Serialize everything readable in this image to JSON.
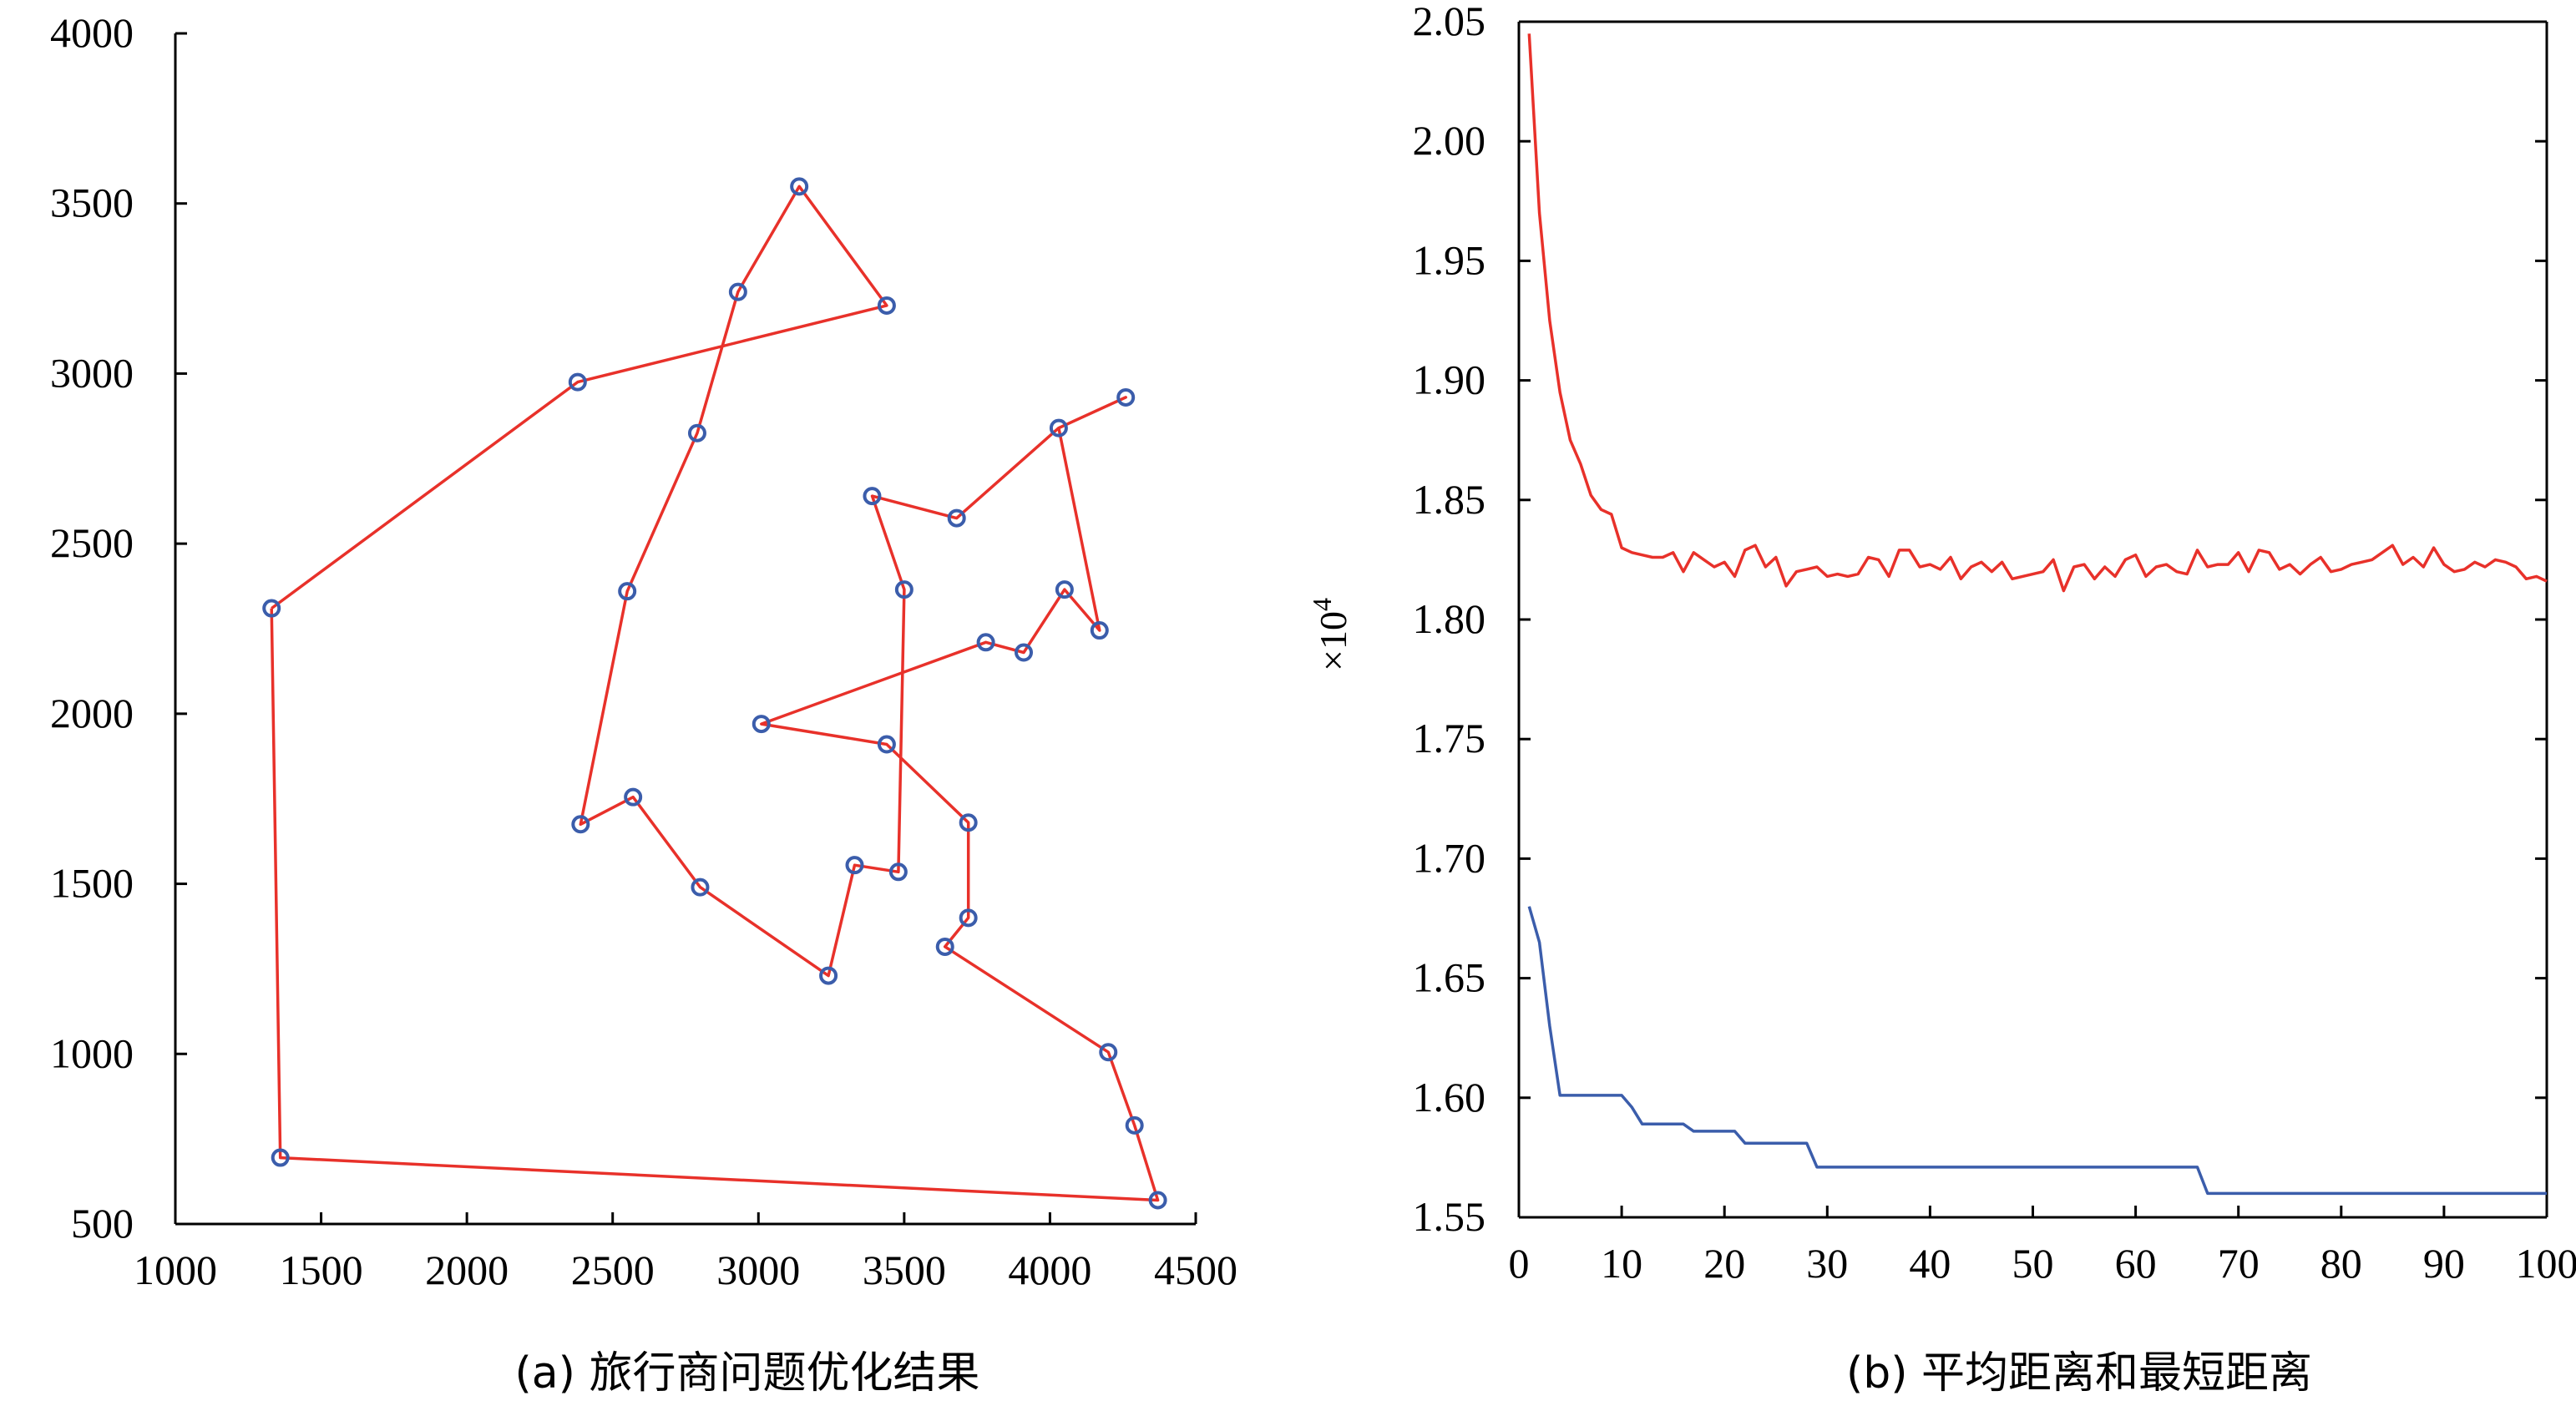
{
  "chart_data": [
    {
      "type": "line",
      "subtype": "route",
      "caption": "(a) 旅行商问题优化结果",
      "xlim": [
        1000,
        4500
      ],
      "ylim": [
        500,
        4000
      ],
      "xticks": [
        "1000",
        "1500",
        "2000",
        "2500",
        "3000",
        "3500",
        "4000",
        "4500"
      ],
      "yticks": [
        "500",
        "1000",
        "1500",
        "2000",
        "2500",
        "3000",
        "3500",
        "4000"
      ],
      "grid": false,
      "line_color": "#e8312a",
      "marker_color": "#3b5dab",
      "route": [
        [
          1330,
          2310
        ],
        [
          2380,
          2975
        ],
        [
          3440,
          3200
        ],
        [
          3140,
          3550
        ],
        [
          2930,
          3240
        ],
        [
          2790,
          2825
        ],
        [
          2550,
          2360
        ],
        [
          2390,
          1675
        ],
        [
          2570,
          1755
        ],
        [
          2800,
          1490
        ],
        [
          3240,
          1230
        ],
        [
          3330,
          1555
        ],
        [
          3480,
          1535
        ],
        [
          3500,
          2365
        ],
        [
          3390,
          2640
        ],
        [
          3680,
          2575
        ],
        [
          4030,
          2840
        ],
        [
          4260,
          2930
        ],
        [
          4030,
          2840
        ],
        [
          4170,
          2245
        ],
        [
          4050,
          2365
        ],
        [
          3910,
          2180
        ],
        [
          3780,
          2210
        ],
        [
          3010,
          1970
        ],
        [
          3440,
          1910
        ],
        [
          3720,
          1680
        ],
        [
          3720,
          1400
        ],
        [
          3640,
          1315
        ],
        [
          4200,
          1005
        ],
        [
          4290,
          790
        ],
        [
          4370,
          570
        ],
        [
          1360,
          695
        ],
        [
          1330,
          2310
        ]
      ]
    },
    {
      "type": "line",
      "caption": "(b) 平均距离和最短距离",
      "xlim": [
        0,
        100
      ],
      "ylim": [
        1.55,
        2.05
      ],
      "multiplier": "×10",
      "multiplier_exp": "4",
      "xticks": [
        "0",
        "10",
        "20",
        "30",
        "40",
        "50",
        "60",
        "70",
        "80",
        "90",
        "100"
      ],
      "yticks": [
        "1.55",
        "1.60",
        "1.65",
        "1.70",
        "1.75",
        "1.80",
        "1.85",
        "1.90",
        "1.95",
        "2.00",
        "2.05"
      ],
      "grid": false,
      "series": [
        {
          "color": "#e8312a",
          "x": [
            1,
            2,
            3,
            4,
            5,
            6,
            7,
            8,
            9,
            10,
            11,
            12,
            13,
            14,
            15,
            16,
            17,
            18,
            19,
            20,
            21,
            22,
            23,
            24,
            25,
            26,
            27,
            28,
            29,
            30,
            31,
            32,
            33,
            34,
            35,
            36,
            37,
            38,
            39,
            40,
            41,
            42,
            43,
            44,
            45,
            46,
            47,
            48,
            49,
            50,
            51,
            52,
            53,
            54,
            55,
            56,
            57,
            58,
            59,
            60,
            61,
            62,
            63,
            64,
            65,
            66,
            67,
            68,
            69,
            70,
            71,
            72,
            73,
            74,
            75,
            76,
            77,
            78,
            79,
            80,
            81,
            82,
            83,
            84,
            85,
            86,
            87,
            88,
            89,
            90,
            91,
            92,
            93,
            94,
            95,
            96,
            97,
            98,
            99,
            100
          ],
          "values": [
            2.045,
            1.97,
            1.925,
            1.895,
            1.875,
            1.865,
            1.852,
            1.846,
            1.844,
            1.83,
            1.828,
            1.827,
            1.826,
            1.826,
            1.828,
            1.82,
            1.828,
            1.825,
            1.822,
            1.824,
            1.818,
            1.829,
            1.831,
            1.822,
            1.826,
            1.814,
            1.82,
            1.821,
            1.822,
            1.818,
            1.819,
            1.818,
            1.819,
            1.826,
            1.825,
            1.818,
            1.829,
            1.829,
            1.822,
            1.823,
            1.821,
            1.826,
            1.817,
            1.822,
            1.824,
            1.82,
            1.824,
            1.817,
            1.818,
            1.819,
            1.82,
            1.825,
            1.812,
            1.822,
            1.823,
            1.817,
            1.822,
            1.818,
            1.825,
            1.827,
            1.818,
            1.822,
            1.823,
            1.82,
            1.819,
            1.829,
            1.822,
            1.823,
            1.823,
            1.828,
            1.82,
            1.829,
            1.828,
            1.821,
            1.823,
            1.819,
            1.823,
            1.826,
            1.82,
            1.821,
            1.823,
            1.824,
            1.825,
            1.828,
            1.831,
            1.823,
            1.826,
            1.822,
            1.83,
            1.823,
            1.82,
            1.821,
            1.824,
            1.822,
            1.825,
            1.824,
            1.822,
            1.817,
            1.818,
            1.816
          ]
        },
        {
          "color": "#3b5dab",
          "x": [
            1,
            2,
            3,
            4,
            5,
            6,
            7,
            8,
            9,
            10,
            11,
            12,
            13,
            14,
            15,
            16,
            17,
            18,
            19,
            20,
            21,
            22,
            23,
            24,
            25,
            26,
            27,
            28,
            29,
            30,
            31,
            32,
            33,
            34,
            35,
            36,
            37,
            38,
            39,
            40,
            41,
            42,
            43,
            44,
            45,
            46,
            47,
            48,
            49,
            50,
            51,
            52,
            53,
            54,
            55,
            56,
            57,
            58,
            59,
            60,
            61,
            62,
            63,
            64,
            65,
            66,
            67,
            68,
            69,
            70,
            71,
            72,
            73,
            74,
            75,
            76,
            77,
            78,
            79,
            80,
            81,
            82,
            83,
            84,
            85,
            86,
            87,
            88,
            89,
            90,
            91,
            92,
            93,
            94,
            95,
            96,
            97,
            98,
            99,
            100
          ],
          "values": [
            1.68,
            1.665,
            1.63,
            1.601,
            1.601,
            1.601,
            1.601,
            1.601,
            1.601,
            1.601,
            1.596,
            1.589,
            1.589,
            1.589,
            1.589,
            1.589,
            1.586,
            1.586,
            1.586,
            1.586,
            1.586,
            1.581,
            1.581,
            1.581,
            1.581,
            1.581,
            1.581,
            1.581,
            1.571,
            1.571,
            1.571,
            1.571,
            1.571,
            1.571,
            1.571,
            1.571,
            1.571,
            1.571,
            1.571,
            1.571,
            1.571,
            1.571,
            1.571,
            1.571,
            1.571,
            1.571,
            1.571,
            1.571,
            1.571,
            1.571,
            1.571,
            1.571,
            1.571,
            1.571,
            1.571,
            1.571,
            1.571,
            1.571,
            1.571,
            1.571,
            1.571,
            1.571,
            1.571,
            1.571,
            1.571,
            1.571,
            1.56,
            1.56,
            1.56,
            1.56,
            1.56,
            1.56,
            1.56,
            1.56,
            1.56,
            1.56,
            1.56,
            1.56,
            1.56,
            1.56,
            1.56,
            1.56,
            1.56,
            1.56,
            1.56,
            1.56,
            1.56,
            1.56,
            1.56,
            1.56,
            1.56,
            1.56,
            1.56,
            1.56,
            1.56,
            1.56,
            1.56,
            1.56,
            1.56,
            1.56
          ]
        }
      ]
    }
  ]
}
